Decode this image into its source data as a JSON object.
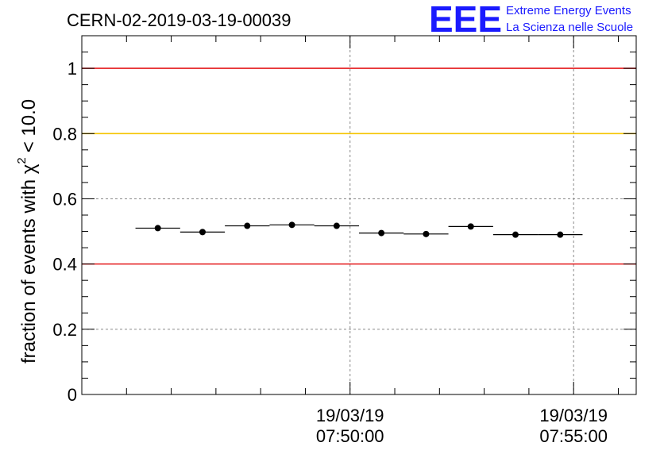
{
  "chart_data": {
    "type": "scatter",
    "title": "CERN-02-2019-03-19-00039",
    "ylabel": "fraction of events with",
    "ylabel_symbol": "χ",
    "ylabel_exponent": "2",
    "ylabel_tail": "< 10.0",
    "ylim": [
      0,
      1.1
    ],
    "y_ticks": [
      "0",
      "0.2",
      "0.4",
      "0.6",
      "0.8",
      "1"
    ],
    "y_tick_values": [
      0,
      0.2,
      0.4,
      0.6,
      0.8,
      1.0
    ],
    "x_unit": "minutes",
    "xlim": [
      -11.0,
      1.4
    ],
    "x_ticks": [
      {
        "x": -5,
        "date": "19/03/19",
        "time": "07:50:00"
      },
      {
        "x": 0,
        "date": "19/03/19",
        "time": "07:55:00"
      }
    ],
    "grid": true,
    "reference_lines": [
      {
        "y": 1.0,
        "color": "#e41a1c"
      },
      {
        "y": 0.8,
        "color": "#f5c400"
      },
      {
        "y": 0.4,
        "color": "#e41a1c"
      }
    ],
    "series": [
      {
        "x": [
          -9.3,
          -8.3,
          -7.3,
          -6.3,
          -5.3,
          -4.3,
          -3.3,
          -2.3,
          -1.3,
          -0.3
        ],
        "y": [
          0.51,
          0.498,
          0.517,
          0.52,
          0.517,
          0.495,
          0.492,
          0.515,
          0.49,
          0.49
        ],
        "x_halfwidth": 0.5
      }
    ]
  },
  "logo": {
    "mark": "EEE",
    "line1": "Extreme Energy Events",
    "line2": "La Scienza nelle Scuole"
  }
}
